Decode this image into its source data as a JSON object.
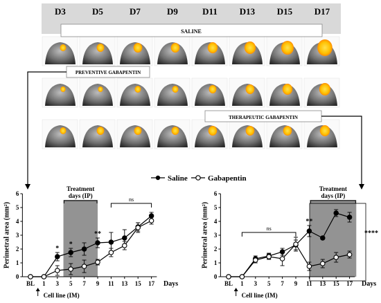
{
  "columns": [
    "D3",
    "D5",
    "D7",
    "D9",
    "D11",
    "D13",
    "D15",
    "D17"
  ],
  "row_labels": {
    "saline": "SALINE",
    "preventive": "PREVENTIVE GABAPENTIN",
    "therapeutic": "THERAPEUTIC GABAPENTIN"
  },
  "legend": {
    "saline": "Saline",
    "gabapentin": "Gabapentin"
  },
  "colors": {
    "header_bg": "#d9d9d9",
    "treatment_shade": "#808080",
    "signal": "#ffc000"
  },
  "chart_data": [
    {
      "type": "line",
      "panel": "preventive",
      "x_tick_labels": [
        "BL",
        "1",
        "3",
        "5",
        "7",
        "9",
        "11",
        "13",
        "15",
        "17"
      ],
      "x_axis_label": "Days",
      "ylabel": "Perimetral area (mm²)",
      "ylim": [
        0,
        6
      ],
      "y_ticks": [
        0,
        1,
        2,
        3,
        4,
        5,
        6
      ],
      "shaded_region_label": "Treatment days (IP)",
      "arrow_label": "Cell line (IM)",
      "ns_label": "ns",
      "series": [
        {
          "name": "Saline",
          "marker": "filled",
          "x": [
            "BL",
            "1",
            "3",
            "5",
            "7",
            "9",
            "11",
            "13",
            "15",
            "17"
          ],
          "y": [
            0,
            0,
            1.45,
            1.75,
            2.0,
            2.45,
            2.5,
            2.8,
            3.6,
            4.4
          ],
          "err": [
            0,
            0,
            0.3,
            0.3,
            0.45,
            0.35,
            0.7,
            0.6,
            0.3,
            0.25
          ]
        },
        {
          "name": "Gabapentin",
          "marker": "open",
          "x": [
            "BL",
            "1",
            "3",
            "5",
            "7",
            "9",
            "11",
            "13",
            "15",
            "17"
          ],
          "y": [
            0,
            0,
            0.45,
            0.55,
            0.75,
            1.05,
            1.75,
            2.25,
            3.55,
            4.05
          ],
          "err": [
            0,
            0,
            0.35,
            0.4,
            0.45,
            0.2,
            0.3,
            0.3,
            0.35,
            0.25
          ]
        }
      ],
      "significance": [
        {
          "x": "3",
          "label": "*"
        },
        {
          "x": "5",
          "label": "*"
        },
        {
          "x": "9",
          "label": "**"
        }
      ]
    },
    {
      "type": "line",
      "panel": "therapeutic",
      "x_tick_labels": [
        "BL",
        "1",
        "3",
        "5",
        "7",
        "9",
        "11",
        "13",
        "15",
        "17"
      ],
      "x_axis_label": "Days",
      "ylabel": "Perimetral area (mm²)",
      "ylim": [
        0,
        6
      ],
      "y_ticks": [
        0,
        1,
        2,
        3,
        4,
        5,
        6
      ],
      "shaded_region_label": "Treatment days (IP)",
      "arrow_label": "Cell line (IM)",
      "ns_label": "ns",
      "series": [
        {
          "name": "Saline",
          "marker": "filled",
          "x": [
            "BL",
            "1",
            "3",
            "5",
            "7",
            "9",
            "11",
            "13",
            "15",
            "17"
          ],
          "y": [
            0,
            0,
            1.3,
            1.5,
            1.8,
            2.3,
            3.3,
            2.8,
            4.6,
            4.3
          ],
          "err": [
            0,
            0,
            0.2,
            0.2,
            0.25,
            0.35,
            0.4,
            0.1,
            0.25,
            0.35
          ]
        },
        {
          "name": "Gabapentin",
          "marker": "open",
          "x": [
            "BL",
            "1",
            "3",
            "5",
            "7",
            "9",
            "11",
            "13",
            "15",
            "17"
          ],
          "y": [
            0,
            0,
            1.2,
            1.45,
            1.3,
            2.35,
            0.75,
            0.95,
            1.4,
            1.6
          ],
          "err": [
            0,
            0,
            0.2,
            0.2,
            0.5,
            0.5,
            0.3,
            0.3,
            0.35,
            0.25
          ]
        }
      ],
      "significance": [
        {
          "x": "11",
          "label": "**"
        },
        {
          "x": "17",
          "label": "****"
        }
      ]
    }
  ]
}
